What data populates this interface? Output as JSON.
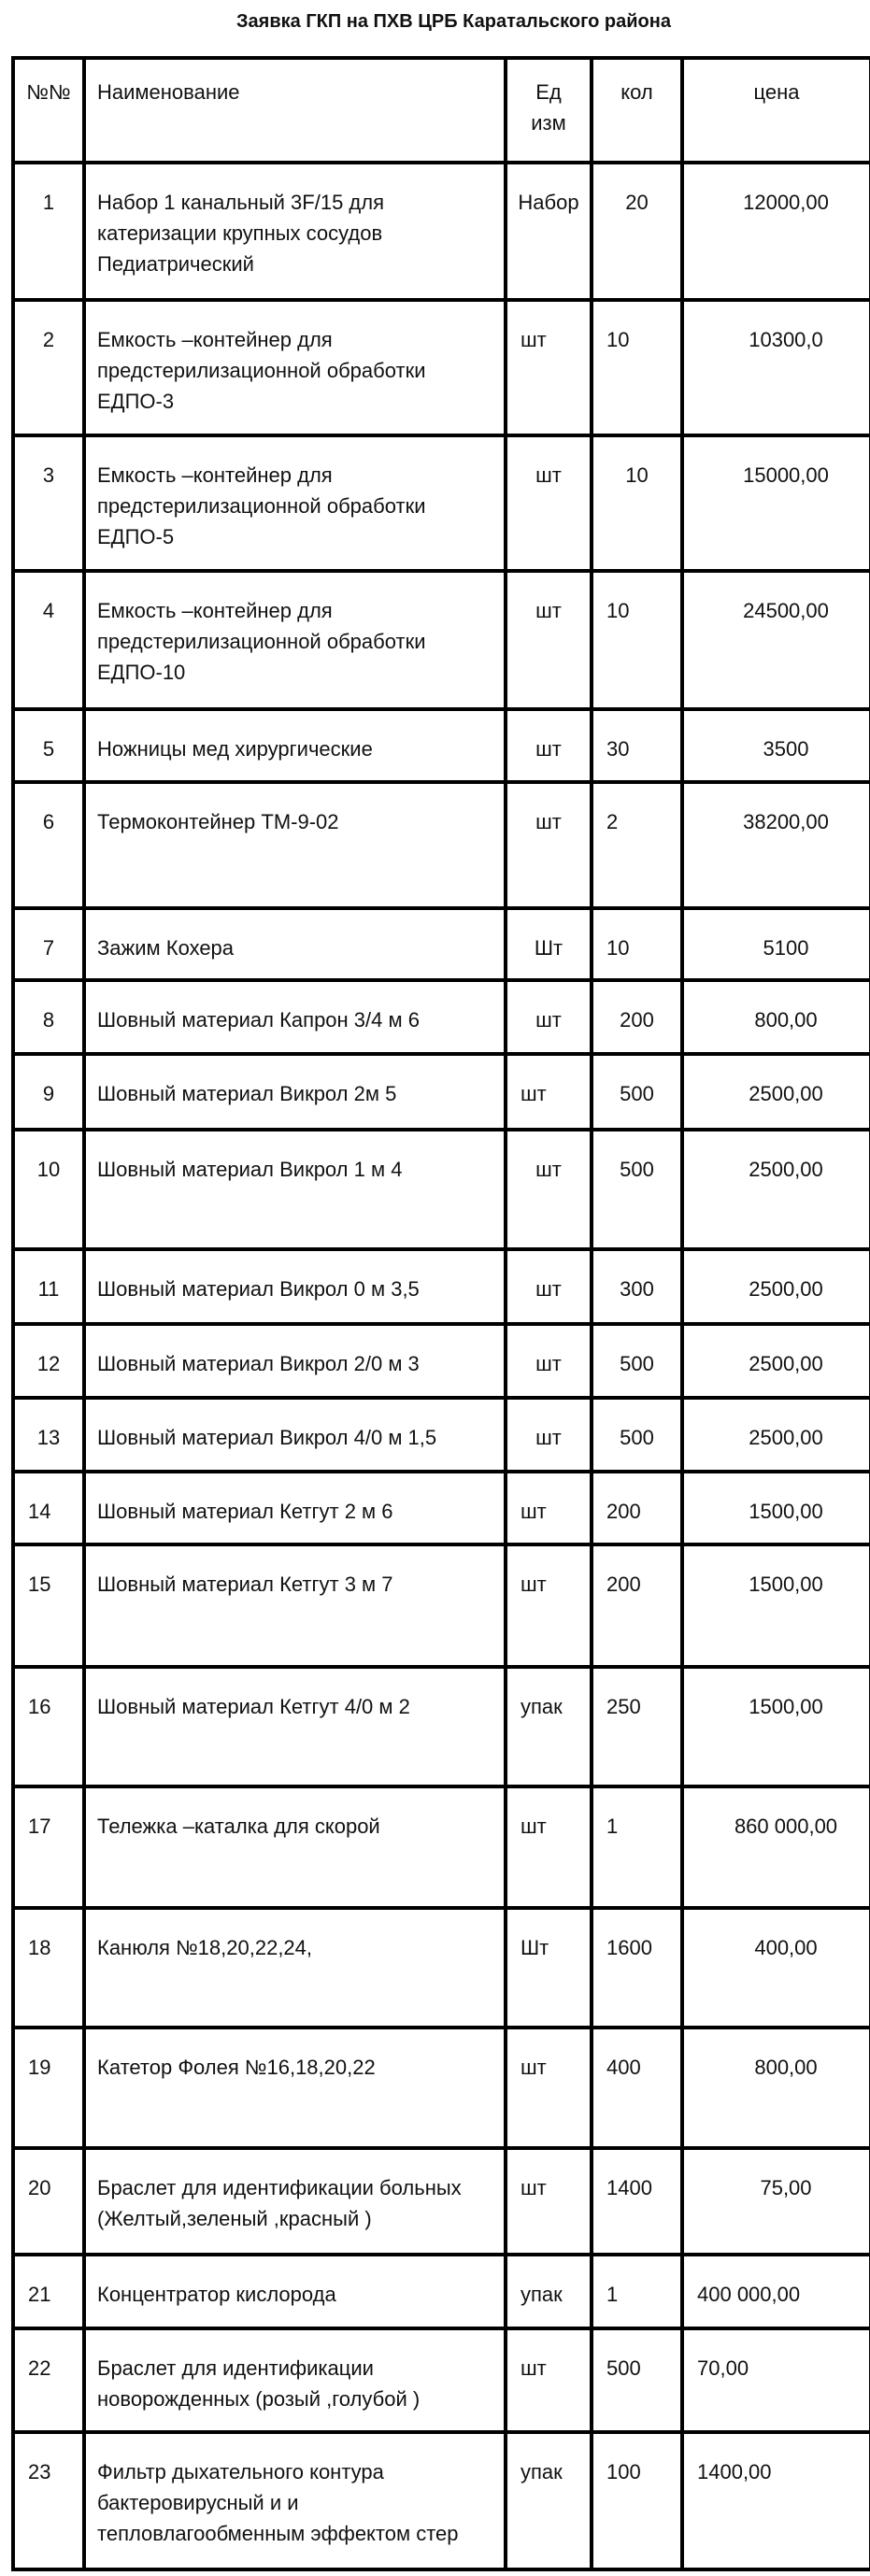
{
  "title": "Заявка ГКП на ПХВ  ЦРБ  Каратальского района",
  "columns": {
    "num": "№№",
    "name": "Наименование",
    "unit_line1": "Ед",
    "unit_line2": "изм",
    "qty": "кол",
    "price": "цена"
  },
  "rows": [
    {
      "num": "1",
      "name": "Набор 1 канальный 3F/15 для катеризации крупных сосудов Педиатрический",
      "unit": "Набор",
      "qty": "20",
      "price": "12000,00"
    },
    {
      "num": "2",
      "name": "Емкость –контейнер для предстерилизационной обработки ЕДПО-3",
      "unit": "шт",
      "qty": "10",
      "price": "10300,0"
    },
    {
      "num": "3",
      "name": "Емкость –контейнер для предстерилизационной обработки ЕДПО-5",
      "unit": "шт",
      "qty": "10",
      "price": "15000,00"
    },
    {
      "num": "4",
      "name": "Емкость –контейнер для предстерилизационной обработки ЕДПО-10",
      "unit": "шт",
      "qty": "10",
      "price": "24500,00"
    },
    {
      "num": "5",
      "name": "Ножницы мед хирургические",
      "unit": "шт",
      "qty": "30",
      "price": "3500"
    },
    {
      "num": "6",
      "name": "Термоконтейнер ТМ-9-02",
      "unit": "шт",
      "qty": "2",
      "price": "38200,00"
    },
    {
      "num": "7",
      "name": "Зажим Кохера",
      "unit": "Шт",
      "qty": "10",
      "price": "5100"
    },
    {
      "num": "8",
      "name": "Шовный материал Капрон 3/4 м  6",
      "unit": "шт",
      "qty": "200",
      "price": "800,00"
    },
    {
      "num": "9",
      "name": "Шовный материал    Викрол 2м 5",
      "unit": "шт",
      "qty": "500",
      "price": "2500,00"
    },
    {
      "num": "10",
      "name": "Шовный материал    Викрол 1 м 4",
      "unit": "шт",
      "qty": "500",
      "price": "2500,00"
    },
    {
      "num": "11",
      "name": "Шовный материал    Викрол    0 м 3,5",
      "unit": "шт",
      "qty": "300",
      "price": "2500,00"
    },
    {
      "num": "12",
      "name": "Шовный материал    Викрол    2/0 м 3",
      "unit": "шт",
      "qty": "500",
      "price": "2500,00"
    },
    {
      "num": "13",
      "name": "Шовный материал    Викрол    4/0  м 1,5",
      "unit": "шт",
      "qty": "500",
      "price": "2500,00"
    },
    {
      "num": "14",
      "name": "Шовный материал    Кетгут    2  м 6",
      "unit": "шт",
      "qty": "200",
      "price": "1500,00"
    },
    {
      "num": "15",
      "name": "Шовный материал    Кетгут    3  м 7",
      "unit": "шт",
      "qty": "200",
      "price": "1500,00"
    },
    {
      "num": "16",
      "name": "Шовный материал    Кетгут    4/0  м 2",
      "unit": "упак",
      "qty": "250",
      "price": "1500,00"
    },
    {
      "num": "17",
      "name": "Тележка –каталка для  скорой",
      "unit": "шт",
      "qty": "1",
      "price": "860 000,00"
    },
    {
      "num": "18",
      "name": " Канюля №18,20,22,24,",
      "unit": "Шт",
      "qty": "1600",
      "price": "400,00"
    },
    {
      "num": "19",
      "name": "Катетор Фолея №16,18,20,22",
      "unit": "шт",
      "qty": "400",
      "price": "800,00"
    },
    {
      "num": "20",
      "name": "Браслет для идентификации больных (Желтый,зеленый ,красный )",
      "unit": "шт",
      "qty": "1400",
      "price": "75,00"
    },
    {
      "num": "21",
      "name": "Концентратор кислорода",
      "unit": "упак",
      "qty": "1",
      "price": "400 000,00"
    },
    {
      "num": "22",
      "name": "Браслет для идентификации новорожденных (розый ,голубой )",
      "unit": "шт",
      "qty": "500",
      "price": "70,00"
    },
    {
      "num": "23",
      "name": "Фильтр дыхательного контура бактеровирусный и  и тепловлагообменным эффектом  стер",
      "unit": "упак",
      "qty": "100",
      "price": "1400,00"
    }
  ]
}
